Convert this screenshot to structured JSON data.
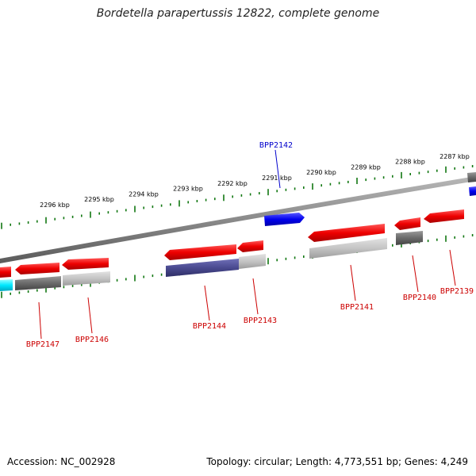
{
  "title": "Bordetella parapertussis 12822, complete genome",
  "footer": {
    "accession": "Accession: NC_002928",
    "summary": "Topology: circular; Length: 4,773,551 bp; Genes: 4,249"
  },
  "colors": {
    "forward_gene": "#0000ee",
    "reverse_gene": "#ee0000",
    "label_red": "#cc0000",
    "label_blue": "#0000cc",
    "backbone": "#888888",
    "tick": "#117711"
  },
  "scale_labels": [
    "2296 kbp",
    "2295 kbp",
    "2294 kbp",
    "2293 kbp",
    "2292 kbp",
    "2291 kbp",
    "2290 kbp",
    "2289 kbp",
    "2288 kbp",
    "2287 kbp"
  ],
  "gene_labels": [
    {
      "id": "BPP2142",
      "strand": "forward"
    },
    {
      "id": "BPP2147",
      "strand": "reverse"
    },
    {
      "id": "BPP2146",
      "strand": "reverse"
    },
    {
      "id": "BPP2144",
      "strand": "reverse"
    },
    {
      "id": "BPP2143",
      "strand": "reverse"
    },
    {
      "id": "BPP2141",
      "strand": "reverse"
    },
    {
      "id": "BPP2140",
      "strand": "reverse"
    },
    {
      "id": "BPP2139",
      "strand": "reverse"
    }
  ]
}
